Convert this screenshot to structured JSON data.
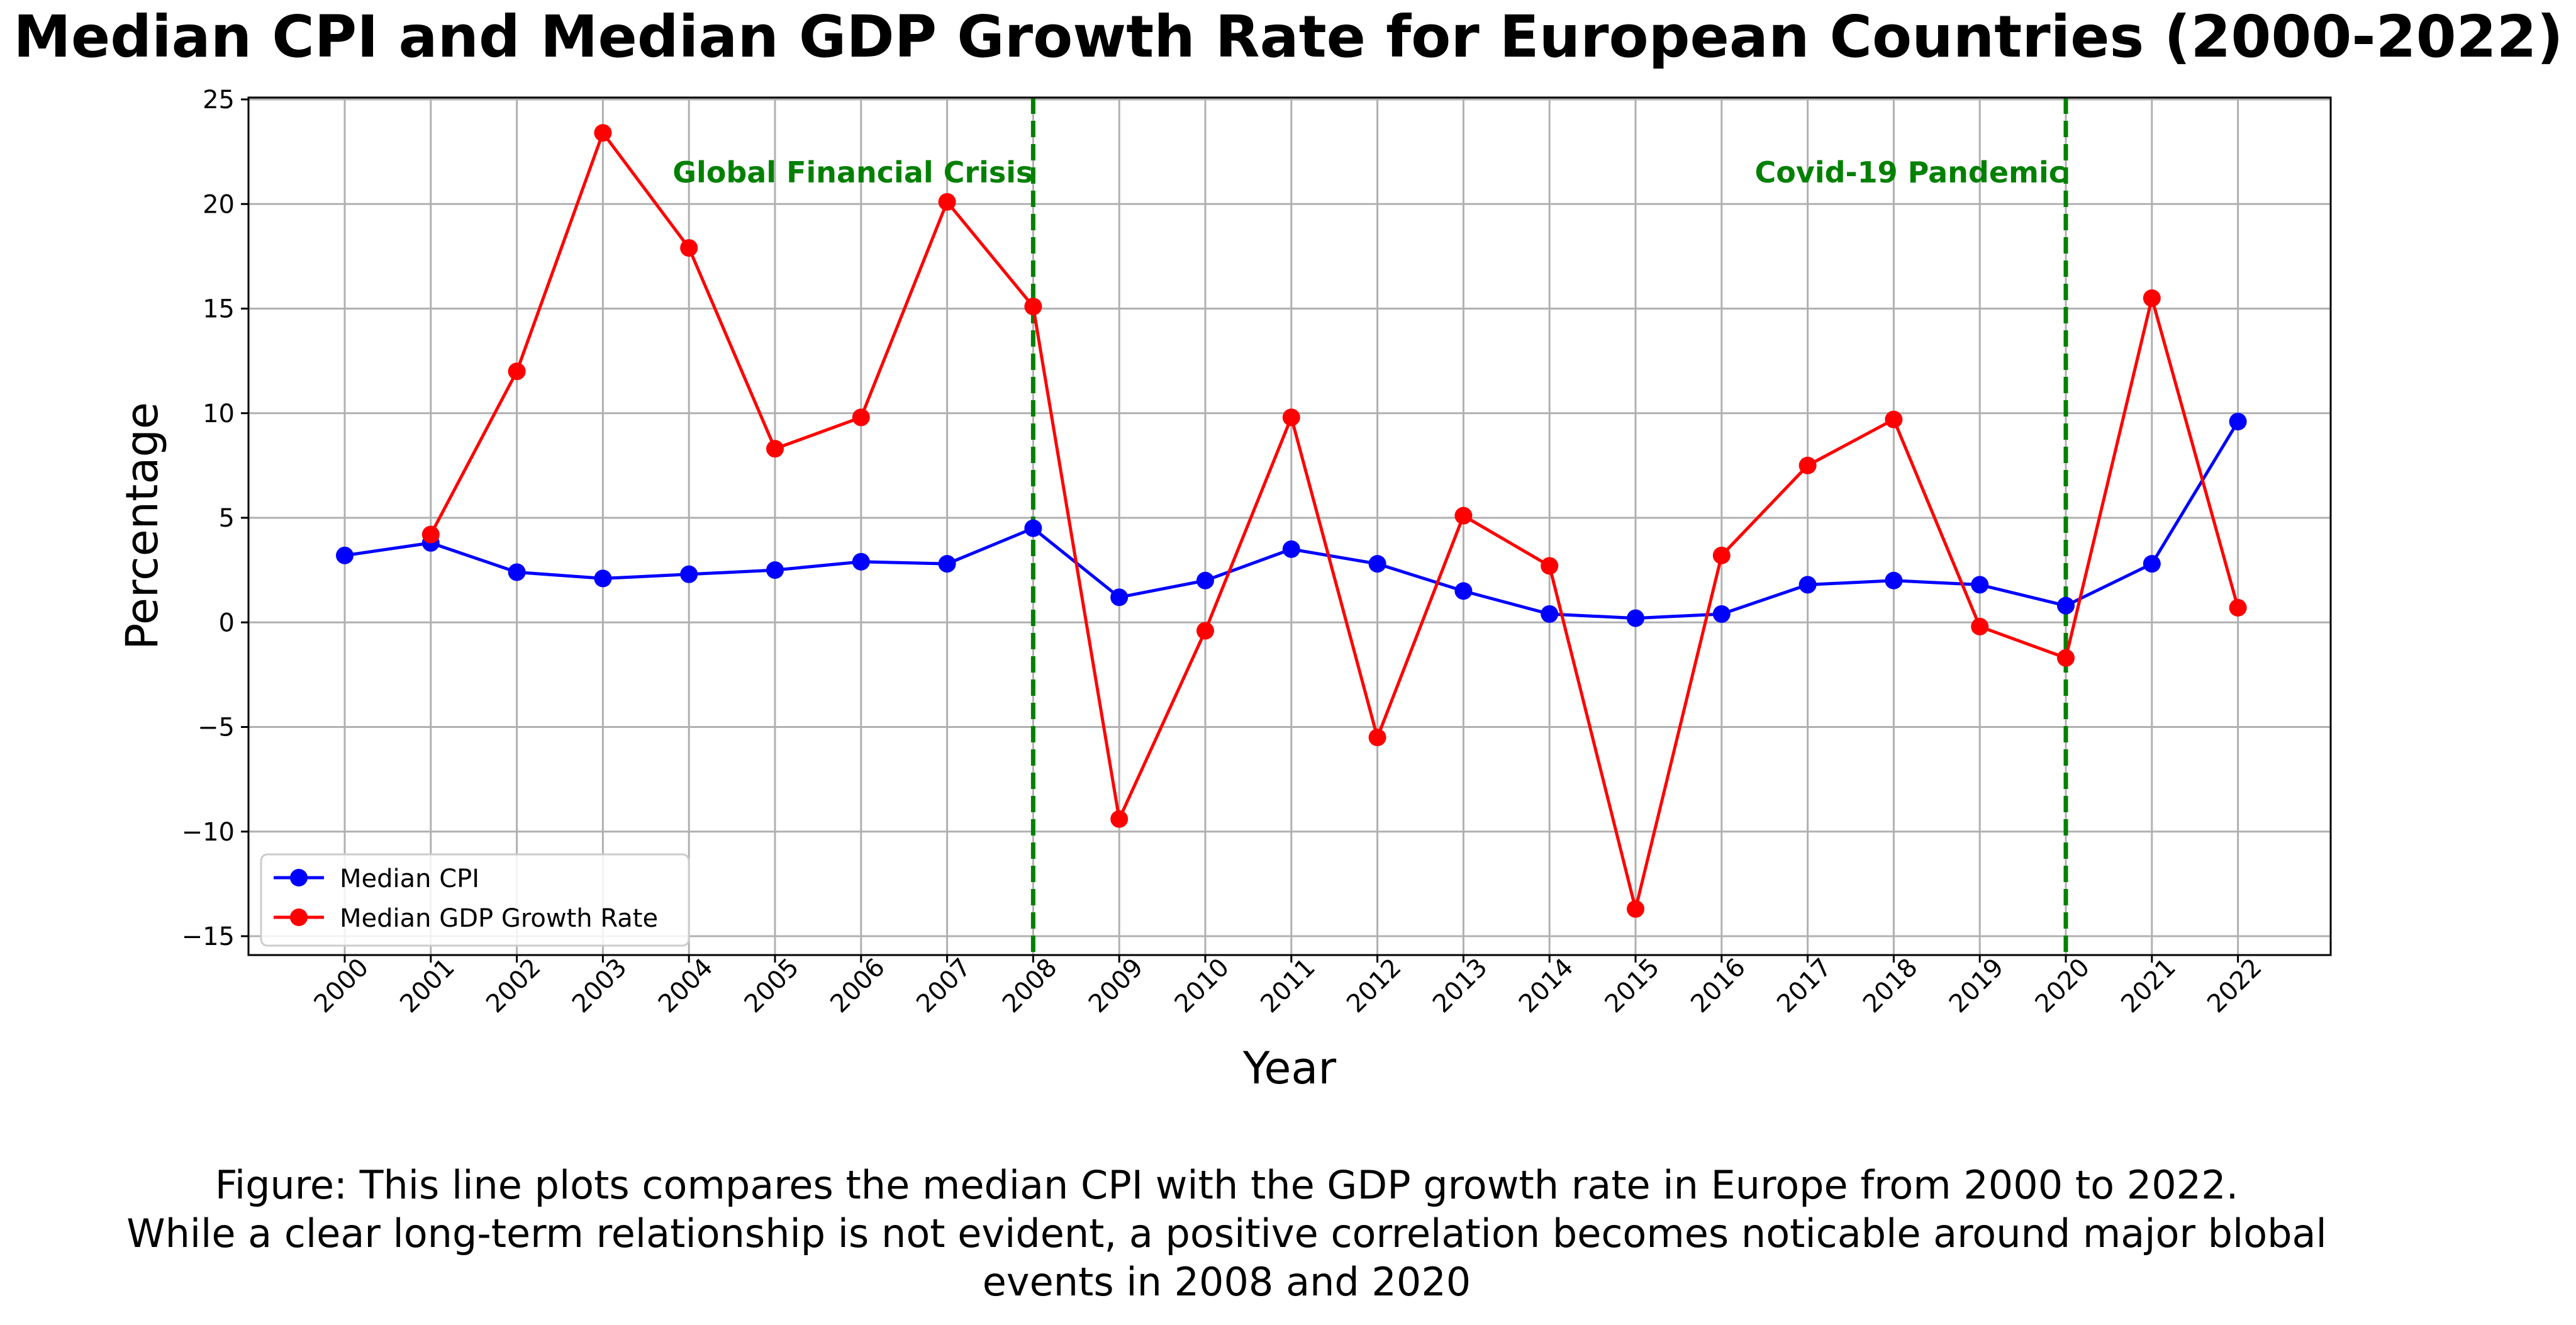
{
  "chart_data": {
    "type": "line",
    "title": "Median CPI and Median GDP Growth Rate for European Countries (2000-2022)",
    "xlabel": "Year",
    "ylabel": "Percentage",
    "x": [
      "2000",
      "2001",
      "2002",
      "2003",
      "2004",
      "2005",
      "2006",
      "2007",
      "2008",
      "2009",
      "2010",
      "2011",
      "2012",
      "2013",
      "2014",
      "2015",
      "2016",
      "2017",
      "2018",
      "2019",
      "2020",
      "2021",
      "2022"
    ],
    "ylim": [
      -15,
      25
    ],
    "yticks": [
      -15,
      -10,
      -5,
      0,
      5,
      10,
      15,
      20,
      25
    ],
    "grid": true,
    "legend_position": "lower-left",
    "series": [
      {
        "name": "Median CPI",
        "color": "#0000ff",
        "values": [
          3.2,
          3.8,
          2.4,
          2.1,
          2.3,
          2.5,
          2.9,
          2.8,
          4.5,
          1.2,
          2.0,
          3.5,
          2.8,
          1.5,
          0.4,
          0.2,
          0.4,
          1.8,
          2.0,
          1.8,
          0.8,
          2.8,
          9.6
        ]
      },
      {
        "name": "Median GDP Growth Rate",
        "color": "#ff0000",
        "values": [
          null,
          4.2,
          12.0,
          23.4,
          17.9,
          8.3,
          9.8,
          20.1,
          15.1,
          -9.4,
          -0.4,
          9.8,
          -5.5,
          5.1,
          2.7,
          -13.7,
          3.2,
          7.5,
          9.7,
          -0.2,
          -1.7,
          15.5,
          0.7
        ]
      }
    ],
    "annotations": [
      {
        "x": "2008",
        "text": "Global Financial Crisis",
        "color": "#008000"
      },
      {
        "x": "2020",
        "text": "Covid-19 Pandemic",
        "color": "#008000"
      }
    ]
  },
  "caption": {
    "lines": [
      "Figure: This line plots compares the median CPI with the GDP growth rate in Europe from 2000 to 2022.",
      "While a clear long-term relationship is not evident, a positive correlation becomes noticable around major blobal",
      "events in 2008 and 2020"
    ]
  }
}
